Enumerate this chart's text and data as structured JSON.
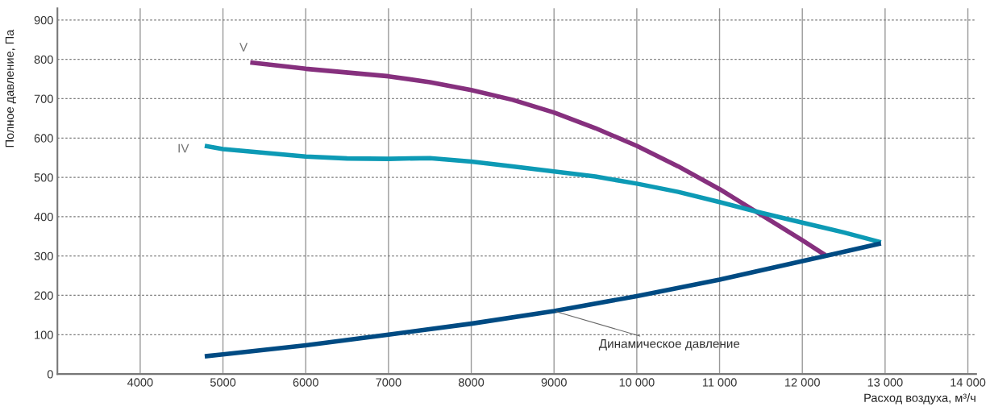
{
  "chart_data": {
    "type": "line",
    "xlabel": "Расход воздуха, м³/ч",
    "ylabel": "Полное давление, Па",
    "xlim": [
      3000,
      14100
    ],
    "ylim": [
      0,
      930
    ],
    "xticks": [
      4000,
      5000,
      6000,
      7000,
      8000,
      9000,
      {
        "value": 10000,
        "label": "10 000"
      },
      {
        "value": 11000,
        "label": "11 000"
      },
      {
        "value": 12000,
        "label": "12 000"
      },
      {
        "value": 13000,
        "label": "13 000"
      },
      {
        "value": 14000,
        "label": "14 000"
      }
    ],
    "yticks": [
      0,
      100,
      200,
      300,
      400,
      500,
      600,
      700,
      800,
      900
    ],
    "grid": true,
    "legend": false,
    "marker": "none",
    "line_style": "solid",
    "series": [
      {
        "name": "V",
        "color": "#86307e",
        "x": [
          5330,
          6000,
          7000,
          7500,
          8000,
          8500,
          9000,
          9500,
          10000,
          10500,
          11000,
          11500,
          12000,
          12280
        ],
        "values": [
          792,
          776,
          757,
          742,
          722,
          697,
          665,
          625,
          580,
          528,
          470,
          405,
          340,
          302
        ]
      },
      {
        "name": "IV",
        "color": "#0d9ab5",
        "x": [
          4780,
          5000,
          6000,
          6500,
          7000,
          7500,
          8000,
          8500,
          9000,
          9500,
          10000,
          10500,
          11000,
          11500,
          12000,
          12500,
          12950
        ],
        "values": [
          580,
          572,
          553,
          548,
          547,
          549,
          540,
          528,
          515,
          502,
          484,
          463,
          437,
          410,
          385,
          360,
          335
        ]
      },
      {
        "name": "Динамическое давление",
        "color": "#004b83",
        "x": [
          4780,
          5000,
          6000,
          7000,
          8000,
          9000,
          10000,
          11000,
          12000,
          12950
        ],
        "values": [
          45,
          50,
          73,
          100,
          128,
          160,
          198,
          240,
          287,
          332
        ]
      }
    ]
  }
}
